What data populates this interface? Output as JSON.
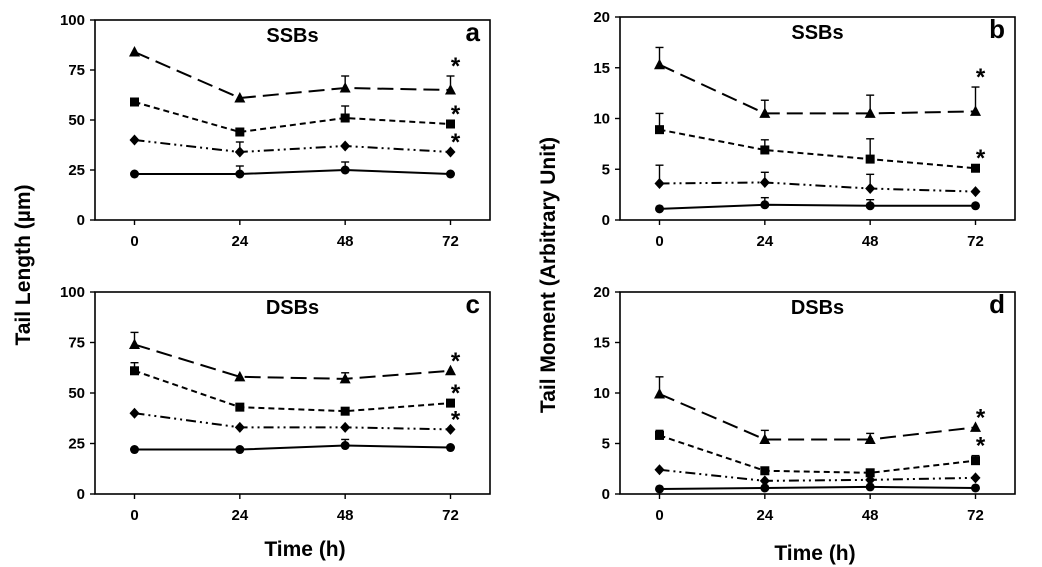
{
  "figure": {
    "ylabel_left": "Tail Length (µm)",
    "ylabel_right": "Tail Moment (Arbitrary Unit)",
    "xlabel_left": "Time (h)",
    "xlabel_right": "Time (h)"
  },
  "chart_data": [
    {
      "type": "line",
      "label": "a",
      "title": "SSBs",
      "x": [
        0,
        24,
        48,
        72
      ],
      "xlim": [
        0,
        72
      ],
      "ylim": [
        0,
        100
      ],
      "yticks": [
        0,
        25,
        50,
        75,
        100
      ],
      "grid": false,
      "series": [
        {
          "marker": "triangle",
          "dash": "long-dash",
          "values": [
            84,
            61,
            66,
            65
          ],
          "errors": [
            0,
            0,
            6,
            7
          ],
          "significant_at": [
            72
          ]
        },
        {
          "marker": "square",
          "dash": "short-dash",
          "values": [
            59,
            44,
            51,
            48
          ],
          "errors": [
            0,
            0,
            6,
            0
          ],
          "significant_at": [
            72
          ]
        },
        {
          "marker": "diamond",
          "dash": "dash-dot-dot",
          "values": [
            40,
            34,
            37,
            34
          ],
          "errors": [
            0,
            5,
            0,
            0
          ],
          "significant_at": [
            72
          ]
        },
        {
          "marker": "circle",
          "dash": "solid",
          "values": [
            23,
            23,
            25,
            23
          ],
          "errors": [
            0,
            4,
            4,
            0
          ],
          "significant_at": []
        }
      ]
    },
    {
      "type": "line",
      "label": "b",
      "title": "SSBs",
      "x": [
        0,
        24,
        48,
        72
      ],
      "xlim": [
        0,
        72
      ],
      "ylim": [
        0,
        20
      ],
      "yticks": [
        0,
        5,
        10,
        15,
        20
      ],
      "grid": false,
      "series": [
        {
          "marker": "triangle",
          "dash": "long-dash",
          "values": [
            15.3,
            10.5,
            10.5,
            10.7
          ],
          "errors": [
            1.7,
            1.3,
            1.8,
            2.4
          ],
          "significant_at": [
            72
          ]
        },
        {
          "marker": "square",
          "dash": "short-dash",
          "values": [
            8.9,
            6.9,
            6.0,
            5.1
          ],
          "errors": [
            1.6,
            1.0,
            2.0,
            0
          ],
          "significant_at": [
            72
          ]
        },
        {
          "marker": "diamond",
          "dash": "dash-dot-dot",
          "values": [
            3.6,
            3.7,
            3.1,
            2.8
          ],
          "errors": [
            1.8,
            1.0,
            1.4,
            0
          ],
          "significant_at": []
        },
        {
          "marker": "circle",
          "dash": "solid",
          "values": [
            1.1,
            1.5,
            1.4,
            1.4
          ],
          "errors": [
            0,
            0.7,
            0.6,
            0
          ],
          "significant_at": []
        }
      ]
    },
    {
      "type": "line",
      "label": "c",
      "title": "DSBs",
      "x": [
        0,
        24,
        48,
        72
      ],
      "xlim": [
        0,
        72
      ],
      "ylim": [
        0,
        100
      ],
      "yticks": [
        0,
        25,
        50,
        75,
        100
      ],
      "grid": false,
      "series": [
        {
          "marker": "triangle",
          "dash": "long-dash",
          "values": [
            74,
            58,
            57,
            61
          ],
          "errors": [
            6,
            0,
            3,
            0
          ],
          "significant_at": [
            72
          ]
        },
        {
          "marker": "square",
          "dash": "short-dash",
          "values": [
            61,
            43,
            41,
            45
          ],
          "errors": [
            4,
            0,
            0,
            0
          ],
          "significant_at": [
            72
          ]
        },
        {
          "marker": "diamond",
          "dash": "dash-dot-dot",
          "values": [
            40,
            33,
            33,
            32
          ],
          "errors": [
            0,
            0,
            0,
            0
          ],
          "significant_at": [
            72
          ]
        },
        {
          "marker": "circle",
          "dash": "solid",
          "values": [
            22,
            22,
            24,
            23
          ],
          "errors": [
            0,
            0,
            3,
            0
          ],
          "significant_at": []
        }
      ]
    },
    {
      "type": "line",
      "label": "d",
      "title": "DSBs",
      "x": [
        0,
        24,
        48,
        72
      ],
      "xlim": [
        0,
        72
      ],
      "ylim": [
        0,
        20
      ],
      "yticks": [
        0,
        5,
        10,
        15,
        20
      ],
      "grid": false,
      "series": [
        {
          "marker": "triangle",
          "dash": "long-dash",
          "values": [
            9.9,
            5.4,
            5.4,
            6.6
          ],
          "errors": [
            1.7,
            0.9,
            0.6,
            0
          ],
          "significant_at": [
            72
          ]
        },
        {
          "marker": "square",
          "dash": "short-dash",
          "values": [
            5.8,
            2.3,
            2.1,
            3.3
          ],
          "errors": [
            0.5,
            0.3,
            0.3,
            0.5
          ],
          "significant_at": [
            72
          ]
        },
        {
          "marker": "diamond",
          "dash": "dash-dot-dot",
          "values": [
            2.4,
            1.3,
            1.4,
            1.6
          ],
          "errors": [
            0,
            0,
            0,
            0
          ],
          "significant_at": []
        },
        {
          "marker": "circle",
          "dash": "solid",
          "values": [
            0.5,
            0.6,
            0.7,
            0.6
          ],
          "errors": [
            0,
            0,
            0,
            0
          ],
          "significant_at": []
        }
      ]
    }
  ]
}
